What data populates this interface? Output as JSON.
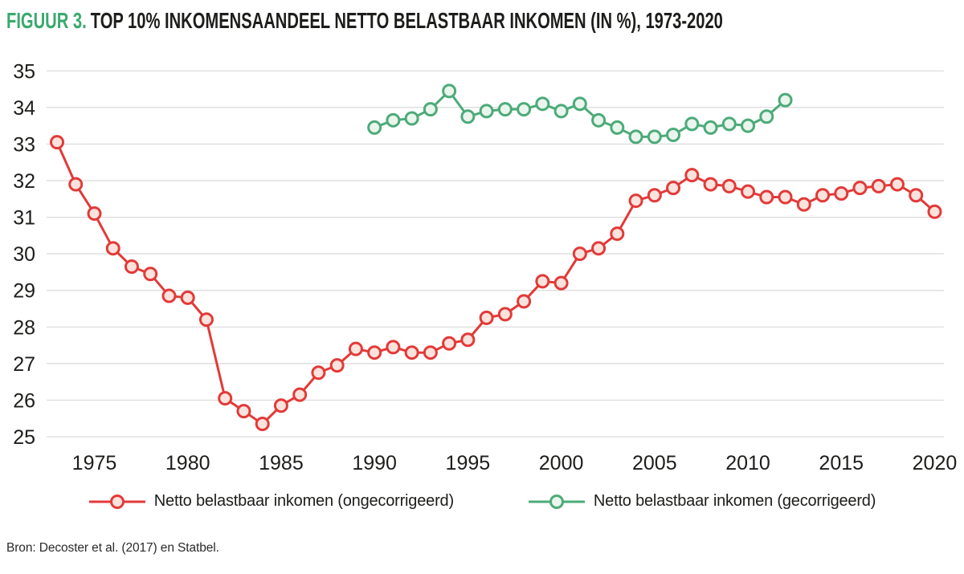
{
  "header": {
    "figure_label": "FIGUUR 3.",
    "title": "TOP 10% INKOMENSAANDEEL NETTO BELASTBAAR INKOMEN (IN %), 1973-2020"
  },
  "source": "Bron: Decoster et al. (2017) en Statbel.",
  "colors": {
    "accent_green": "#3aa96d",
    "text": "#1d1d1b",
    "grid": "#d9d9d9",
    "series_red": "#e23a38",
    "series_red_fill": "#fbe3dd",
    "series_green": "#4cab79",
    "series_green_fill": "#eaf5ee"
  },
  "legend": [
    {
      "id": "ongecorrigeerd",
      "label": "Netto belastbaar inkomen (ongecorrigeerd)"
    },
    {
      "id": "gecorrigeerd",
      "label": "Netto belastbaar inkomen (gecorrigeerd)"
    }
  ],
  "chart_data": {
    "type": "line",
    "title": "TOP 10% INKOMENSAANDEEL NETTO BELASTBAAR INKOMEN (IN %), 1973-2020",
    "xlabel": "",
    "ylabel": "",
    "xlim": [
      1973,
      2020
    ],
    "ylim": [
      25,
      35
    ],
    "yticks": [
      25,
      26,
      27,
      28,
      29,
      30,
      31,
      32,
      33,
      34,
      35
    ],
    "xticks": [
      1975,
      1980,
      1985,
      1990,
      1995,
      2000,
      2005,
      2010,
      2015,
      2020
    ],
    "grid": "horizontal",
    "legend_position": "bottom",
    "marker": "circle",
    "series": [
      {
        "id": "ongecorrigeerd",
        "name": "Netto belastbaar inkomen (ongecorrigeerd)",
        "color": "#e23a38",
        "marker_fill": "#fbe3dd",
        "years": [
          1973,
          1974,
          1975,
          1976,
          1977,
          1978,
          1979,
          1980,
          1981,
          1982,
          1983,
          1984,
          1985,
          1986,
          1987,
          1988,
          1989,
          1990,
          1991,
          1992,
          1993,
          1994,
          1995,
          1996,
          1997,
          1998,
          1999,
          2000,
          2001,
          2002,
          2003,
          2004,
          2005,
          2006,
          2007,
          2008,
          2009,
          2010,
          2011,
          2012,
          2013,
          2014,
          2015,
          2016,
          2017,
          2018,
          2019,
          2020
        ],
        "values": [
          33.05,
          31.9,
          31.1,
          30.15,
          29.65,
          29.45,
          28.85,
          28.8,
          28.2,
          26.05,
          25.7,
          25.35,
          25.85,
          26.15,
          26.75,
          26.95,
          27.4,
          27.3,
          27.45,
          27.3,
          27.3,
          27.55,
          27.65,
          28.25,
          28.35,
          28.7,
          29.25,
          29.2,
          30.0,
          30.15,
          30.55,
          31.45,
          31.6,
          31.8,
          32.15,
          31.9,
          31.85,
          31.7,
          31.55,
          31.55,
          31.35,
          31.6,
          31.65,
          31.8,
          31.85,
          31.9,
          31.6,
          31.15
        ]
      },
      {
        "id": "gecorrigeerd",
        "name": "Netto belastbaar inkomen (gecorrigeerd)",
        "color": "#4cab79",
        "marker_fill": "#eaf5ee",
        "years": [
          1990,
          1991,
          1992,
          1993,
          1994,
          1995,
          1996,
          1997,
          1998,
          1999,
          2000,
          2001,
          2002,
          2003,
          2004,
          2005,
          2006,
          2007,
          2008,
          2009,
          2010,
          2011,
          2012
        ],
        "values": [
          33.45,
          33.65,
          33.7,
          33.95,
          34.45,
          33.75,
          33.9,
          33.95,
          33.95,
          34.1,
          33.9,
          34.1,
          33.65,
          33.45,
          33.2,
          33.2,
          33.25,
          33.55,
          33.45,
          33.55,
          33.5,
          33.75,
          34.2
        ]
      }
    ]
  }
}
